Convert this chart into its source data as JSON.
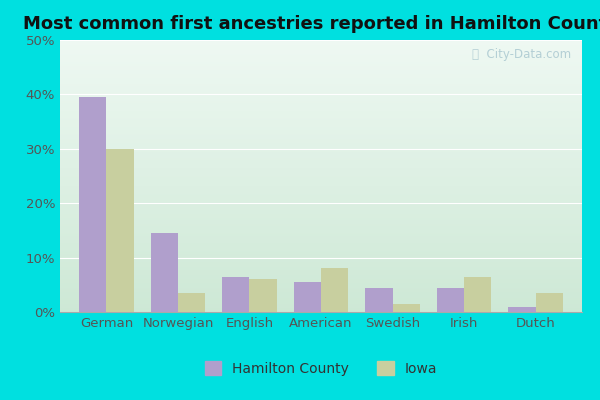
{
  "title": "Most common first ancestries reported in Hamilton County",
  "categories": [
    "German",
    "Norwegian",
    "English",
    "American",
    "Swedish",
    "Irish",
    "Dutch"
  ],
  "hamilton_county": [
    39.5,
    14.5,
    6.5,
    5.5,
    4.5,
    4.5,
    1.0
  ],
  "iowa": [
    30.0,
    3.5,
    6.0,
    8.0,
    1.5,
    6.5,
    3.5
  ],
  "hamilton_color": "#b09fcc",
  "iowa_color": "#c8cf9f",
  "background_outer": "#00e0e0",
  "grad_top": "#eef8f2",
  "grad_bottom": "#cde8d5",
  "ylim": [
    0,
    50
  ],
  "yticks": [
    0,
    10,
    20,
    30,
    40,
    50
  ],
  "ytick_labels": [
    "0%",
    "10%",
    "20%",
    "30%",
    "40%",
    "50%"
  ],
  "bar_width": 0.38,
  "legend_labels": [
    "Hamilton County",
    "Iowa"
  ],
  "watermark": "ⓘ  City-Data.com",
  "title_fontsize": 13,
  "axis_fontsize": 9.5,
  "legend_fontsize": 10,
  "tick_color": "#555555"
}
